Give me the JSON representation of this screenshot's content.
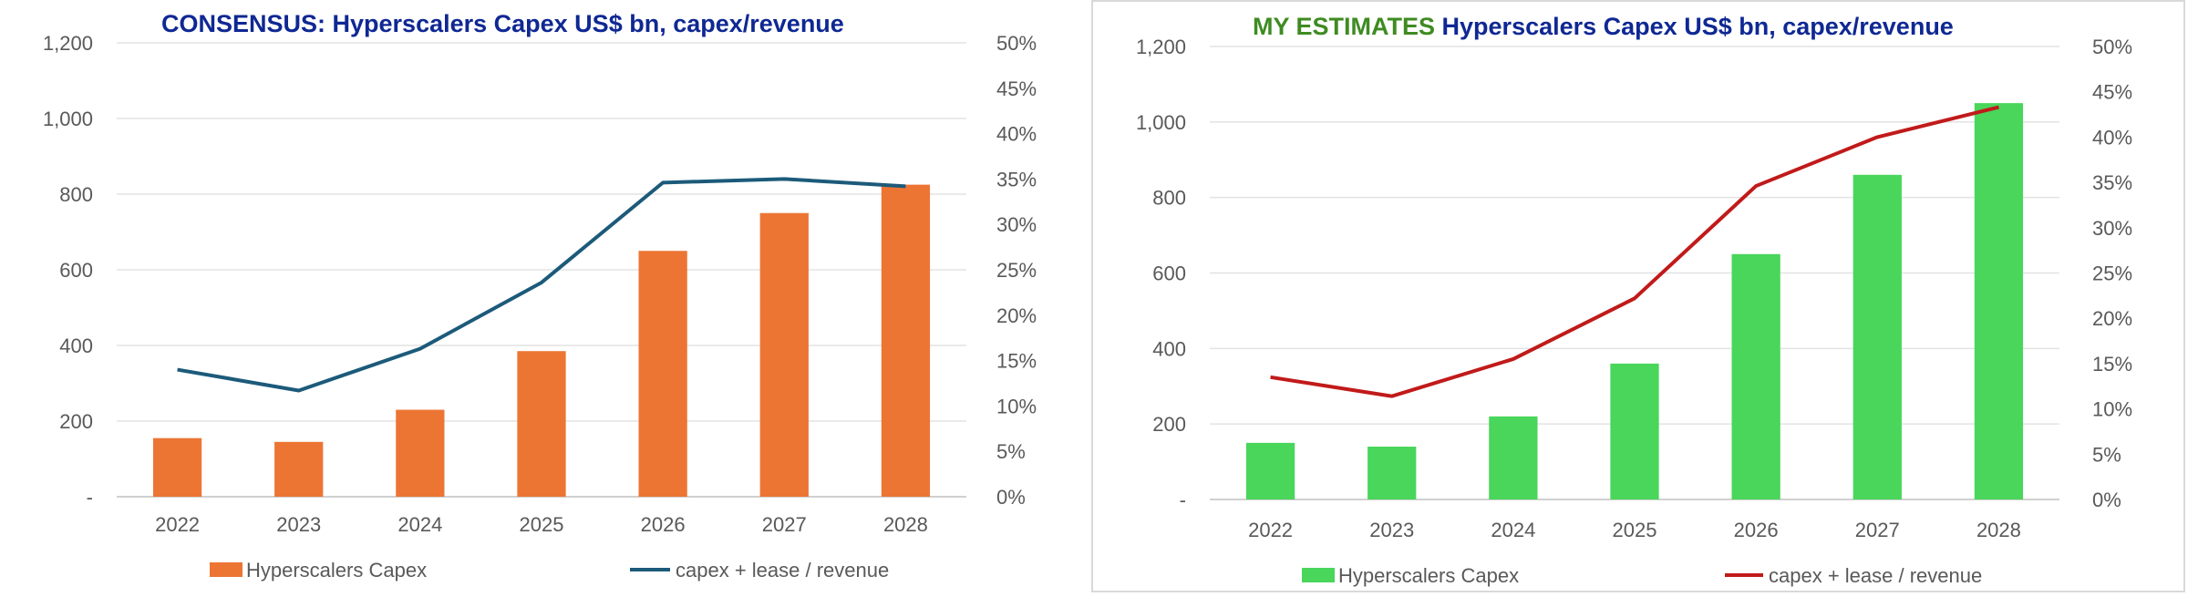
{
  "chart_data": [
    {
      "type": "bar",
      "title_prefix": "",
      "title": "CONSENSUS:  Hyperscalers Capex US$ bn, capex/revenue",
      "categories": [
        "2022",
        "2023",
        "2024",
        "2025",
        "2026",
        "2027",
        "2028"
      ],
      "y_ticks": [
        "-",
        "200",
        "400",
        "600",
        "800",
        "1,000",
        "1,200"
      ],
      "y2_ticks": [
        "0%",
        "5%",
        "10%",
        "15%",
        "20%",
        "25%",
        "30%",
        "35%",
        "40%",
        "45%",
        "50%"
      ],
      "ylim": [
        0,
        1200
      ],
      "y2lim": [
        0,
        50
      ],
      "series": [
        {
          "name": "Hyperscalers Capex",
          "type": "bar",
          "axis": "left",
          "values": [
            155,
            145,
            230,
            385,
            650,
            750,
            825
          ]
        },
        {
          "name": "capex + lease / revenue",
          "type": "line",
          "axis": "right",
          "values": [
            14.0,
            11.7,
            16.3,
            23.6,
            34.6,
            35.0,
            34.2
          ]
        }
      ],
      "colors": {
        "bar": "#ED7534",
        "line": "#1C5A7A",
        "title": "#0F2893",
        "title_prefix": "#4A8B2C"
      }
    },
    {
      "type": "bar",
      "title_prefix": "MY ESTIMATES",
      "title": " Hyperscalers Capex US$ bn, capex/revenue",
      "categories": [
        "2022",
        "2023",
        "2024",
        "2025",
        "2026",
        "2027",
        "2028"
      ],
      "y_ticks": [
        "-",
        "200",
        "400",
        "600",
        "800",
        "1,000",
        "1,200"
      ],
      "y2_ticks": [
        "0%",
        "5%",
        "10%",
        "15%",
        "20%",
        "25%",
        "30%",
        "35%",
        "40%",
        "45%",
        "50%"
      ],
      "ylim": [
        0,
        1200
      ],
      "y2lim": [
        0,
        50
      ],
      "series": [
        {
          "name": "Hyperscalers Capex",
          "type": "bar",
          "axis": "left",
          "values": [
            150,
            140,
            220,
            360,
            650,
            860,
            1050
          ]
        },
        {
          "name": "capex + lease / revenue",
          "type": "line",
          "axis": "right",
          "values": [
            13.5,
            11.4,
            15.5,
            22.2,
            34.6,
            40.0,
            43.3
          ]
        }
      ],
      "colors": {
        "bar": "#49D65B",
        "line": "#C11A1A",
        "title": "#0F2893",
        "title_prefix": "#3F8B22"
      }
    }
  ]
}
